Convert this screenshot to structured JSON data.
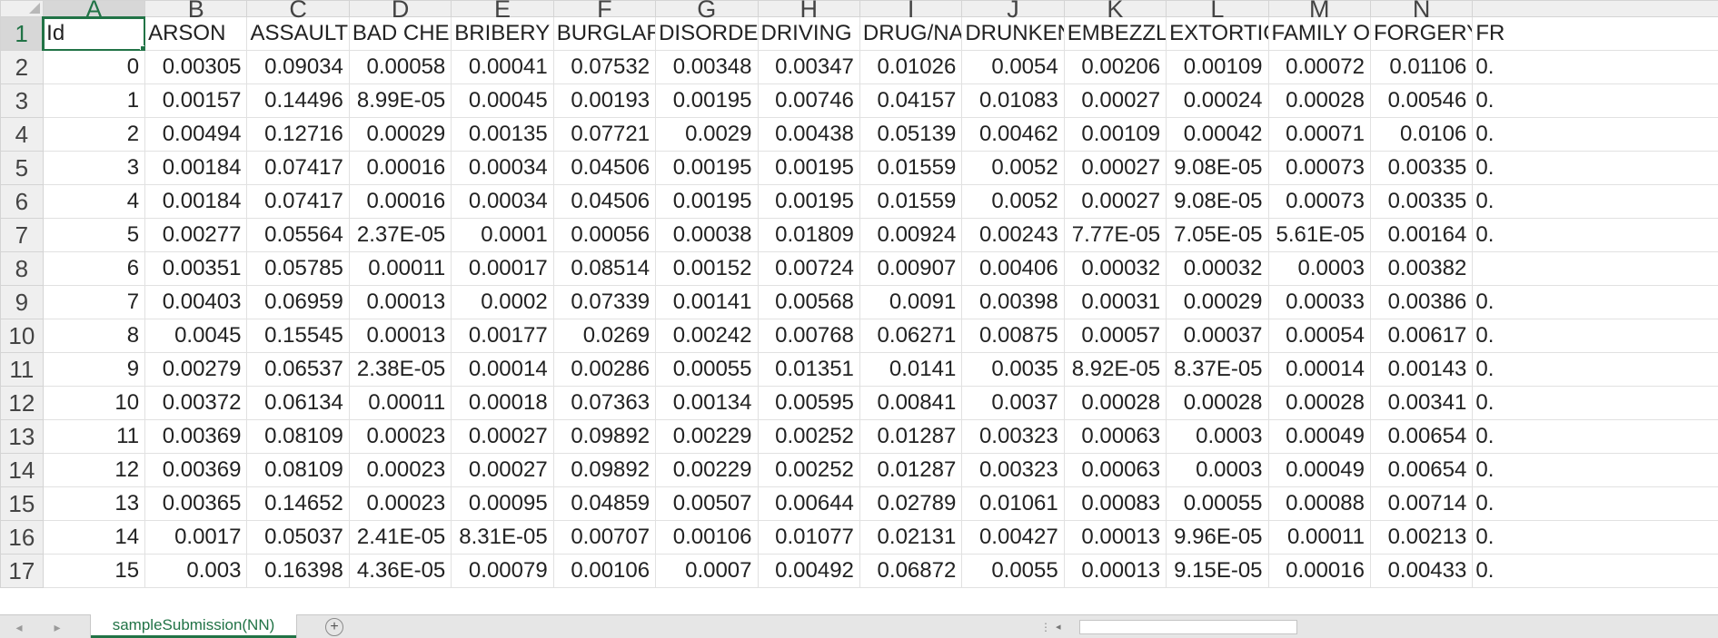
{
  "columns": [
    "A",
    "B",
    "C",
    "D",
    "E",
    "F",
    "G",
    "H",
    "I",
    "J",
    "K",
    "L",
    "M",
    "N"
  ],
  "selected_column": "A",
  "selected_row": "1",
  "header_row": {
    "row_number": "1",
    "cells": [
      "Id",
      "ARSON",
      "ASSAULT",
      "BAD CHE(",
      "BRIBERY",
      "BURGLAR'",
      "DISORDEI",
      "DRIVING U",
      "DRUG/NA",
      "DRUNKEN",
      "EMBEZZLI",
      "EXTORTIC",
      "FAMILY O",
      "FORGERY",
      "FR"
    ]
  },
  "rows": [
    {
      "row_number": "2",
      "cells": [
        "0",
        "0.00305",
        "0.09034",
        "0.00058",
        "0.00041",
        "0.07532",
        "0.00348",
        "0.00347",
        "0.01026",
        "0.0054",
        "0.00206",
        "0.00109",
        "0.00072",
        "0.01106",
        "0."
      ]
    },
    {
      "row_number": "3",
      "cells": [
        "1",
        "0.00157",
        "0.14496",
        "8.99E-05",
        "0.00045",
        "0.00193",
        "0.00195",
        "0.00746",
        "0.04157",
        "0.01083",
        "0.00027",
        "0.00024",
        "0.00028",
        "0.00546",
        "0."
      ]
    },
    {
      "row_number": "4",
      "cells": [
        "2",
        "0.00494",
        "0.12716",
        "0.00029",
        "0.00135",
        "0.07721",
        "0.0029",
        "0.00438",
        "0.05139",
        "0.00462",
        "0.00109",
        "0.00042",
        "0.00071",
        "0.0106",
        "0."
      ]
    },
    {
      "row_number": "5",
      "cells": [
        "3",
        "0.00184",
        "0.07417",
        "0.00016",
        "0.00034",
        "0.04506",
        "0.00195",
        "0.00195",
        "0.01559",
        "0.0052",
        "0.00027",
        "9.08E-05",
        "0.00073",
        "0.00335",
        "0."
      ]
    },
    {
      "row_number": "6",
      "cells": [
        "4",
        "0.00184",
        "0.07417",
        "0.00016",
        "0.00034",
        "0.04506",
        "0.00195",
        "0.00195",
        "0.01559",
        "0.0052",
        "0.00027",
        "9.08E-05",
        "0.00073",
        "0.00335",
        "0."
      ]
    },
    {
      "row_number": "7",
      "cells": [
        "5",
        "0.00277",
        "0.05564",
        "2.37E-05",
        "0.0001",
        "0.00056",
        "0.00038",
        "0.01809",
        "0.00924",
        "0.00243",
        "7.77E-05",
        "7.05E-05",
        "5.61E-05",
        "0.00164",
        "0."
      ]
    },
    {
      "row_number": "8",
      "cells": [
        "6",
        "0.00351",
        "0.05785",
        "0.00011",
        "0.00017",
        "0.08514",
        "0.00152",
        "0.00724",
        "0.00907",
        "0.00406",
        "0.00032",
        "0.00032",
        "0.0003",
        "0.00382",
        ""
      ]
    },
    {
      "row_number": "9",
      "cells": [
        "7",
        "0.00403",
        "0.06959",
        "0.00013",
        "0.0002",
        "0.07339",
        "0.00141",
        "0.00568",
        "0.0091",
        "0.00398",
        "0.00031",
        "0.00029",
        "0.00033",
        "0.00386",
        "0."
      ]
    },
    {
      "row_number": "10",
      "cells": [
        "8",
        "0.0045",
        "0.15545",
        "0.00013",
        "0.00177",
        "0.0269",
        "0.00242",
        "0.00768",
        "0.06271",
        "0.00875",
        "0.00057",
        "0.00037",
        "0.00054",
        "0.00617",
        "0."
      ]
    },
    {
      "row_number": "11",
      "cells": [
        "9",
        "0.00279",
        "0.06537",
        "2.38E-05",
        "0.00014",
        "0.00286",
        "0.00055",
        "0.01351",
        "0.0141",
        "0.0035",
        "8.92E-05",
        "8.37E-05",
        "0.00014",
        "0.00143",
        "0."
      ]
    },
    {
      "row_number": "12",
      "cells": [
        "10",
        "0.00372",
        "0.06134",
        "0.00011",
        "0.00018",
        "0.07363",
        "0.00134",
        "0.00595",
        "0.00841",
        "0.0037",
        "0.00028",
        "0.00028",
        "0.00028",
        "0.00341",
        "0."
      ]
    },
    {
      "row_number": "13",
      "cells": [
        "11",
        "0.00369",
        "0.08109",
        "0.00023",
        "0.00027",
        "0.09892",
        "0.00229",
        "0.00252",
        "0.01287",
        "0.00323",
        "0.00063",
        "0.0003",
        "0.00049",
        "0.00654",
        "0."
      ]
    },
    {
      "row_number": "14",
      "cells": [
        "12",
        "0.00369",
        "0.08109",
        "0.00023",
        "0.00027",
        "0.09892",
        "0.00229",
        "0.00252",
        "0.01287",
        "0.00323",
        "0.00063",
        "0.0003",
        "0.00049",
        "0.00654",
        "0."
      ]
    },
    {
      "row_number": "15",
      "cells": [
        "13",
        "0.00365",
        "0.14652",
        "0.00023",
        "0.00095",
        "0.04859",
        "0.00507",
        "0.00644",
        "0.02789",
        "0.01061",
        "0.00083",
        "0.00055",
        "0.00088",
        "0.00714",
        "0."
      ]
    },
    {
      "row_number": "16",
      "cells": [
        "14",
        "0.0017",
        "0.05037",
        "2.41E-05",
        "8.31E-05",
        "0.00707",
        "0.00106",
        "0.01077",
        "0.02131",
        "0.00427",
        "0.00013",
        "9.96E-05",
        "0.00011",
        "0.00213",
        "0."
      ]
    },
    {
      "row_number": "17",
      "cells": [
        "15",
        "0.003",
        "0.16398",
        "4.36E-05",
        "0.00079",
        "0.00106",
        "0.0007",
        "0.00492",
        "0.06872",
        "0.0055",
        "0.00013",
        "9.15E-05",
        "0.00016",
        "0.00433",
        "0."
      ]
    }
  ],
  "sheet_tabs": [
    {
      "label": "sampleSubmission(NN)",
      "active": true
    }
  ],
  "tab_bar": {
    "prev_icon": "◂",
    "next_icon": "▸",
    "add_icon": "+",
    "splitter_icon": "⋮",
    "scroll_left_icon": "◂"
  },
  "colors": {
    "accent": "#217346",
    "gridline": "#e1e1e1",
    "header_bg": "#efefef"
  }
}
